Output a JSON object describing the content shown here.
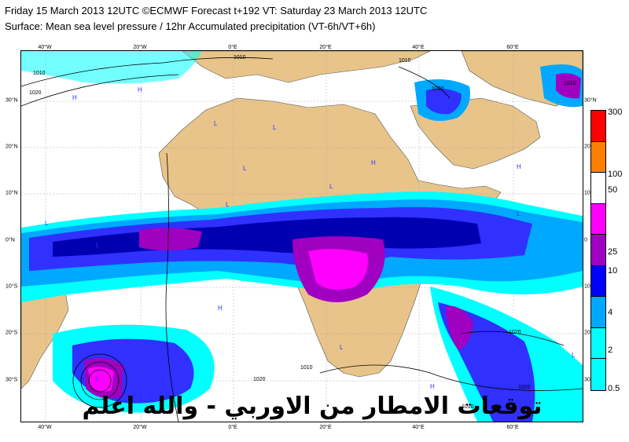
{
  "header": {
    "title_line1": "Friday 15 March 2013 12UTC ©ECMWF Forecast t+192 VT: Saturday 23 March 2013 12UTC",
    "title_line2": "Surface: Mean sea level pressure / 12hr Accumulated precipitation (VT-6h/VT+6h)"
  },
  "map": {
    "longitude_ticks_top": [
      "40°W",
      "20°W",
      "0°E",
      "20°E",
      "40°E",
      "60°E"
    ],
    "longitude_ticks_bottom": [
      "40°W",
      "20°W",
      "0°E",
      "20°E",
      "40°E",
      "60°E"
    ],
    "latitude_ticks_left": [
      "30°N",
      "20°N",
      "10°N",
      "0°N",
      "10°S",
      "20°S",
      "30°S"
    ],
    "latitude_ticks_right": [
      "30°N",
      "20",
      "10",
      "0",
      "10",
      "20",
      "30"
    ],
    "isobar_labels": [
      "1010",
      "1010",
      "1020",
      "1000",
      "1010",
      "1010",
      "1010",
      "1020",
      "1020",
      "1010",
      "1020"
    ],
    "pressure_centres": [
      "H",
      "H",
      "L",
      "L",
      "L",
      "L",
      "H",
      "H",
      "L",
      "L",
      "L",
      "L",
      "H",
      "H",
      "L",
      "H",
      "L",
      "L"
    ],
    "colors": {
      "ocean": "#ffffff",
      "land": "#e8c48a",
      "precip_light": "#00ffff",
      "precip_mid": "#00a8ff",
      "precip_blue": "#3030ff",
      "precip_dark": "#0000b0",
      "precip_purple": "#a000c0",
      "precip_magenta": "#ff00ff"
    }
  },
  "legend": {
    "labels": [
      "300",
      "100",
      "50",
      "25",
      "10",
      "4",
      "2",
      "0.5"
    ],
    "colors": [
      "#ff0000",
      "#ff7f00",
      "#ffffff",
      "#ff00ff",
      "#a000c0",
      "#0000ff",
      "#00a8ff",
      "#00ffff",
      "#00ffff"
    ]
  },
  "overlay_caption": "توقعات الامطار من الاوربي - والله اعلم"
}
